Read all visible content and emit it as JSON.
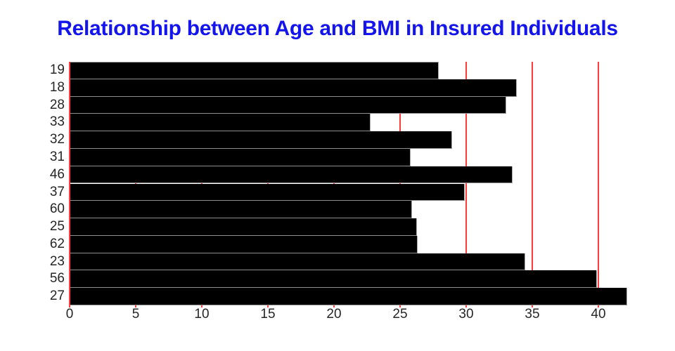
{
  "title": {
    "text": "Relationship between Age and BMI in Insured Individuals",
    "color": "#1414ec"
  },
  "chart_data": {
    "type": "bar",
    "orientation": "horizontal",
    "title": "Relationship between Age and BMI in Insured Individuals",
    "xlabel": "",
    "ylabel": "",
    "categories": [
      "19",
      "18",
      "28",
      "33",
      "32",
      "31",
      "46",
      "37",
      "60",
      "25",
      "62",
      "23",
      "56",
      "27"
    ],
    "series": [
      {
        "name": "BMI",
        "values": [
          27.9,
          33.77,
          33.0,
          22.705,
          28.88,
          25.74,
          33.44,
          29.83,
          25.84,
          26.22,
          26.29,
          34.4,
          39.82,
          42.13
        ]
      }
    ],
    "xlim": [
      0,
      42.13
    ],
    "xticks": [
      0,
      5,
      10,
      15,
      20,
      25,
      30,
      35,
      40
    ],
    "grid": true,
    "grid_axis": "x",
    "gridline_color": "#ff3b3b",
    "bar_color": "#000000",
    "bar_edge_color": "#9e9e9e",
    "background_color": "#ffffff",
    "legend": false
  }
}
